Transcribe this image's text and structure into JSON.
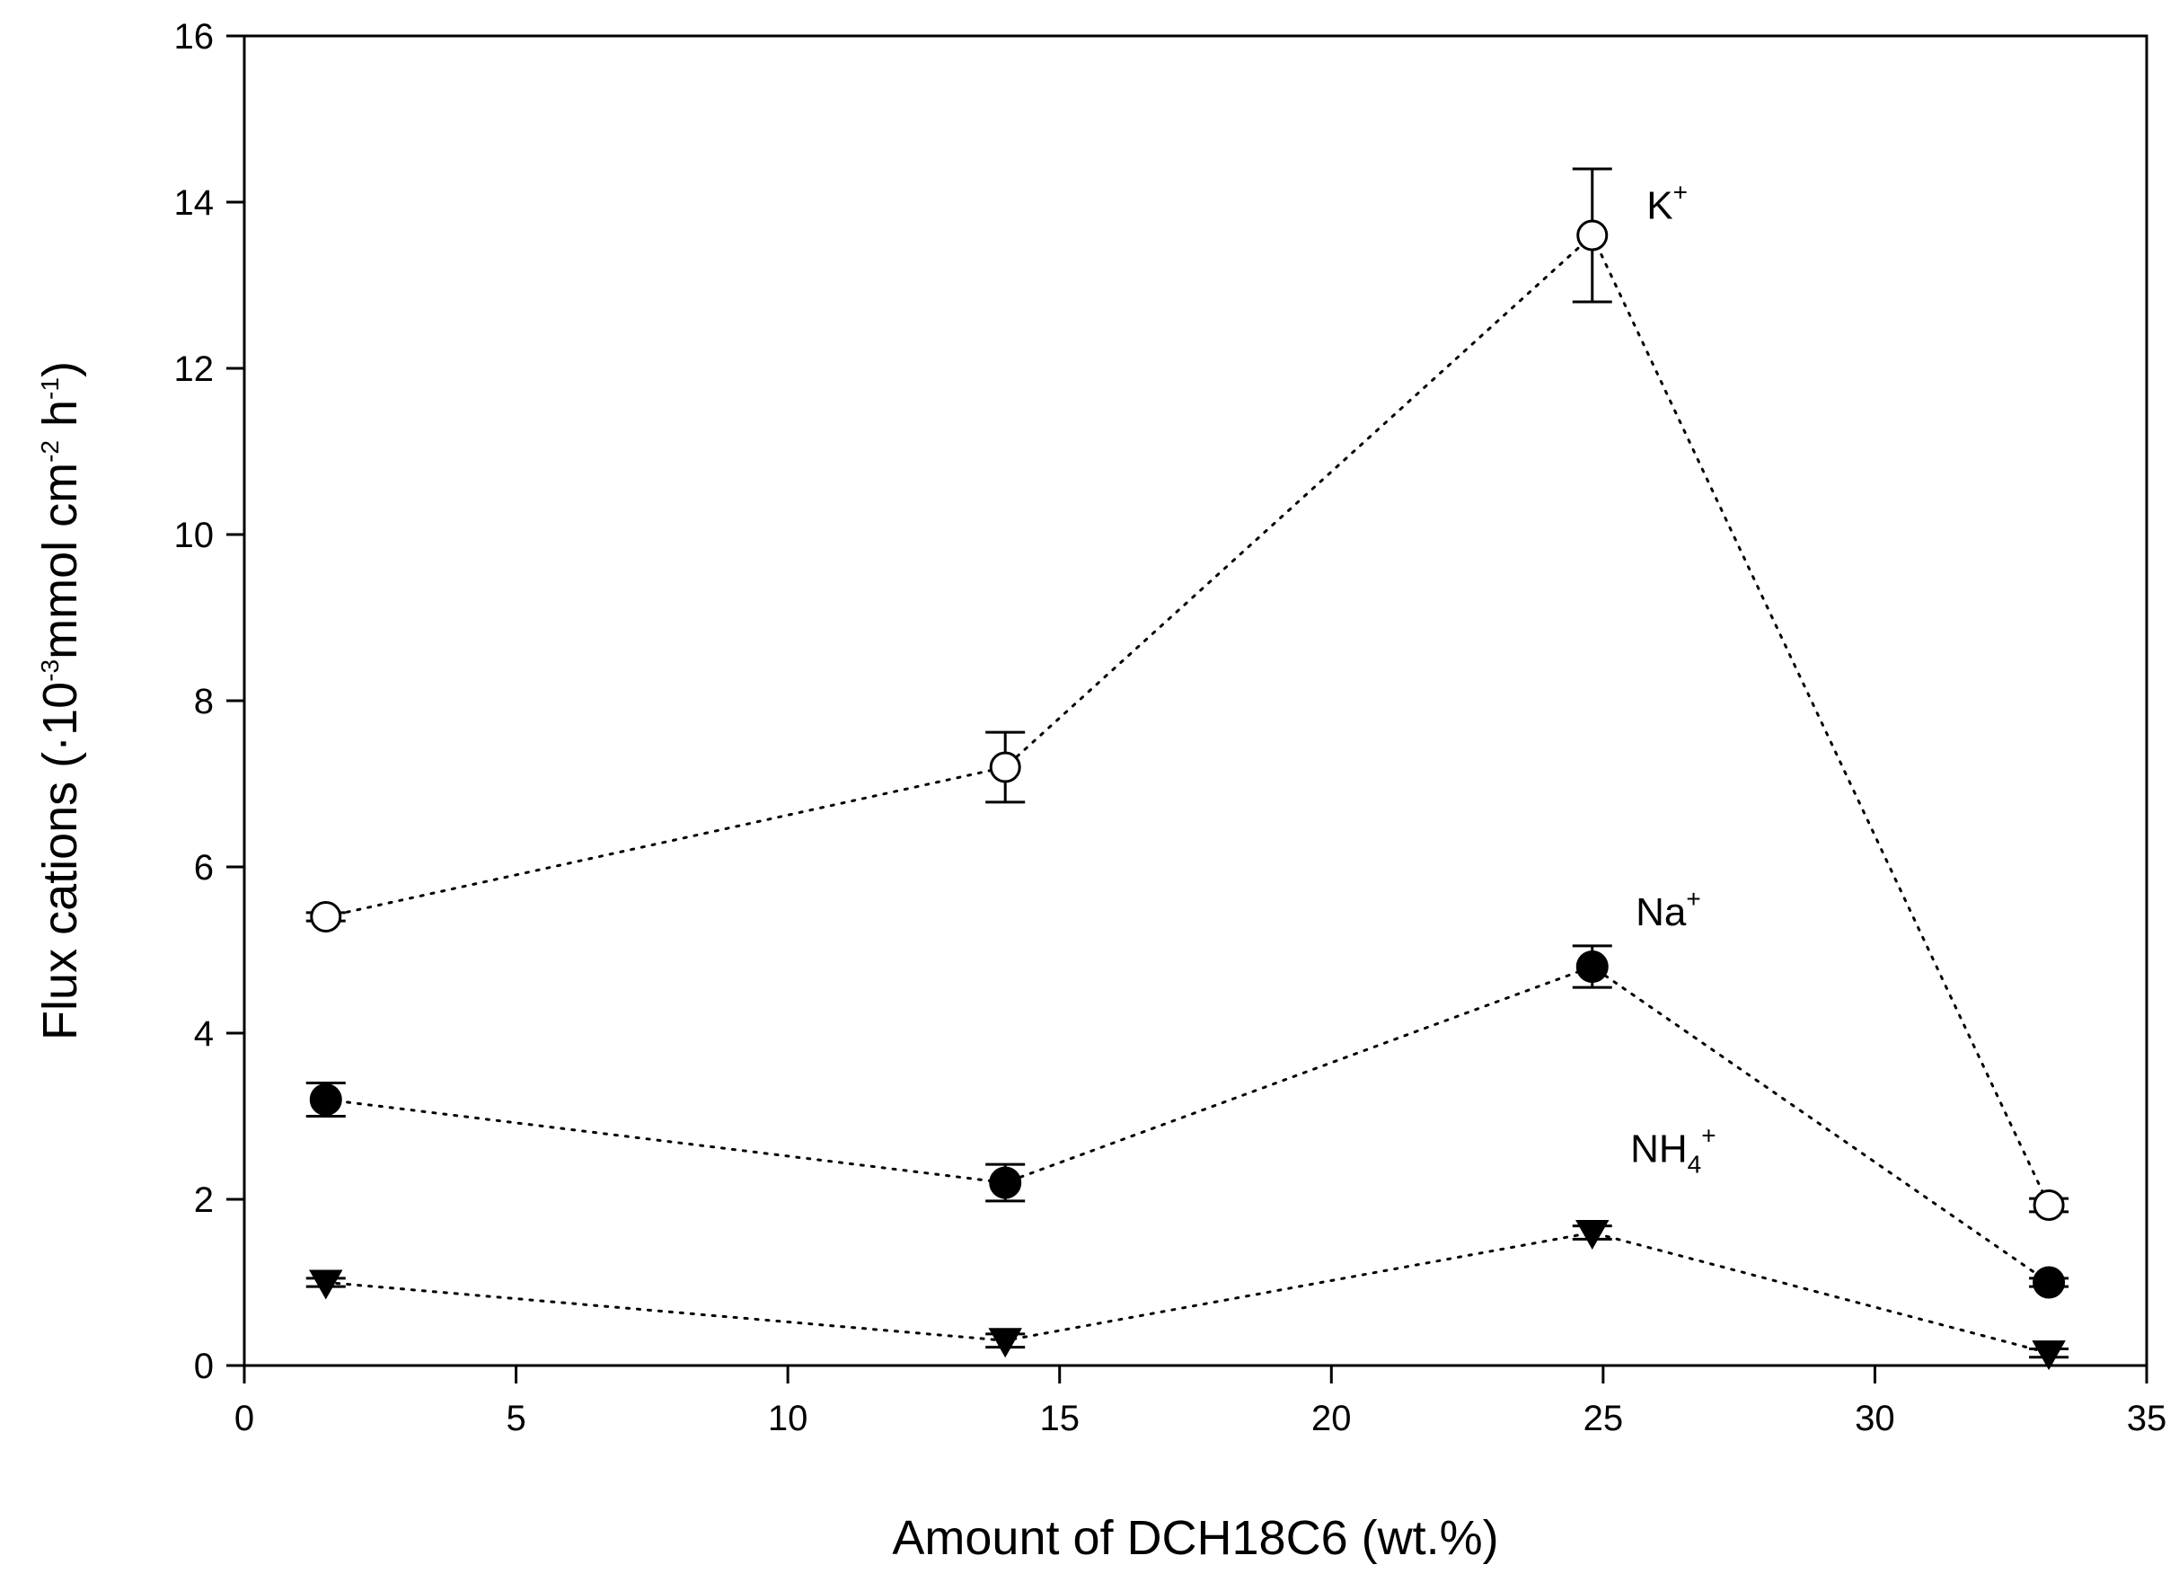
{
  "chart_data": {
    "type": "scatter",
    "title": "",
    "xlabel": "Amount of DCH18C6 (wt.%)",
    "ylabel": {
      "prefix": "Flux cations (·10",
      "exp1": "-3",
      "mid": "mmol cm",
      "exp2": "-2",
      "mid2": " h",
      "exp3": "-1",
      "suffix": ")"
    },
    "xlim": [
      0,
      35
    ],
    "ylim": [
      0,
      16
    ],
    "xticks": [
      0,
      5,
      10,
      15,
      20,
      25,
      30,
      35
    ],
    "yticks": [
      0,
      2,
      4,
      6,
      8,
      10,
      12,
      14,
      16
    ],
    "x": [
      1.5,
      14,
      24.8,
      33.2
    ],
    "series": [
      {
        "name": "K+",
        "label_base": "K",
        "label_sub": "",
        "label_sup": "+",
        "marker": "open-circle",
        "values": [
          5.4,
          7.2,
          13.6,
          1.93
        ],
        "errors": [
          0.05,
          0.42,
          0.8,
          0.08
        ],
        "label_at": [
          25.8,
          13.8
        ]
      },
      {
        "name": "Na+",
        "label_base": "Na",
        "label_sub": "",
        "label_sup": "+",
        "marker": "filled-circle",
        "values": [
          3.2,
          2.2,
          4.8,
          1.0
        ],
        "errors": [
          0.2,
          0.22,
          0.25,
          0.05
        ],
        "label_at": [
          25.6,
          5.3
        ]
      },
      {
        "name": "NH4+",
        "label_base": "NH",
        "label_sub": "4",
        "label_sup": "+",
        "marker": "filled-triangle-down",
        "values": [
          1.0,
          0.3,
          1.6,
          0.15
        ],
        "errors": [
          0.05,
          0.08,
          0.08,
          0.05
        ],
        "label_at": [
          25.5,
          2.45
        ]
      }
    ],
    "line_style": "dotted",
    "grid": false,
    "legend": "none"
  }
}
